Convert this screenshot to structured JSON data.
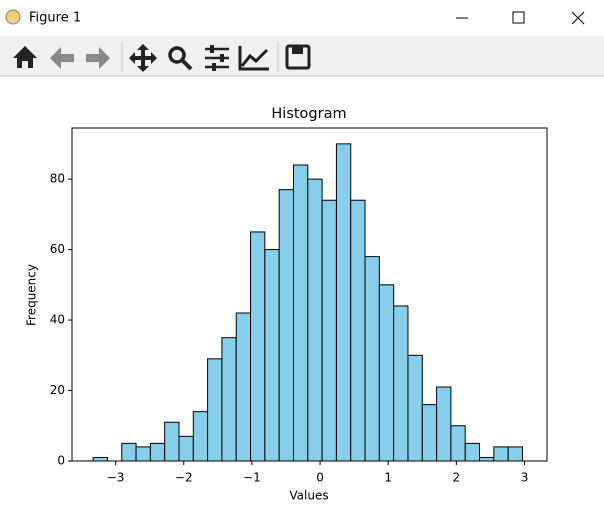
{
  "window": {
    "title": "Figure 1"
  },
  "chart_data": {
    "type": "histogram",
    "title": "Histogram",
    "x_label": "Values",
    "y_label": "Frequency",
    "bins": [
      -3.33,
      -3.12,
      -2.91,
      -2.7,
      -2.49,
      -2.28,
      -2.07,
      -1.86,
      -1.65,
      -1.44,
      -1.23,
      -1.02,
      -0.81,
      -0.6,
      -0.39,
      -0.18,
      0.03,
      0.24,
      0.45,
      0.66,
      0.87,
      1.08,
      1.29,
      1.5,
      1.71,
      1.92,
      2.13,
      2.34,
      2.55,
      2.76,
      2.97
    ],
    "values": [
      1,
      0,
      5,
      4,
      5,
      11,
      7,
      14,
      29,
      35,
      42,
      65,
      60,
      77,
      84,
      80,
      74,
      90,
      74,
      58,
      50,
      44,
      30,
      16,
      21,
      10,
      5,
      1,
      4,
      4
    ],
    "color": "#87ceeb",
    "edge_color": "#000000",
    "xlim": [
      -3.64,
      3.33
    ],
    "ylim": [
      0,
      94.5
    ],
    "xticks": [
      {
        "value": -3,
        "label": "−3"
      },
      {
        "value": -2,
        "label": "−2"
      },
      {
        "value": -1,
        "label": "−1"
      },
      0,
      1,
      2,
      3
    ],
    "yticks": [
      0,
      20,
      40,
      60,
      80
    ],
    "grid": false
  }
}
